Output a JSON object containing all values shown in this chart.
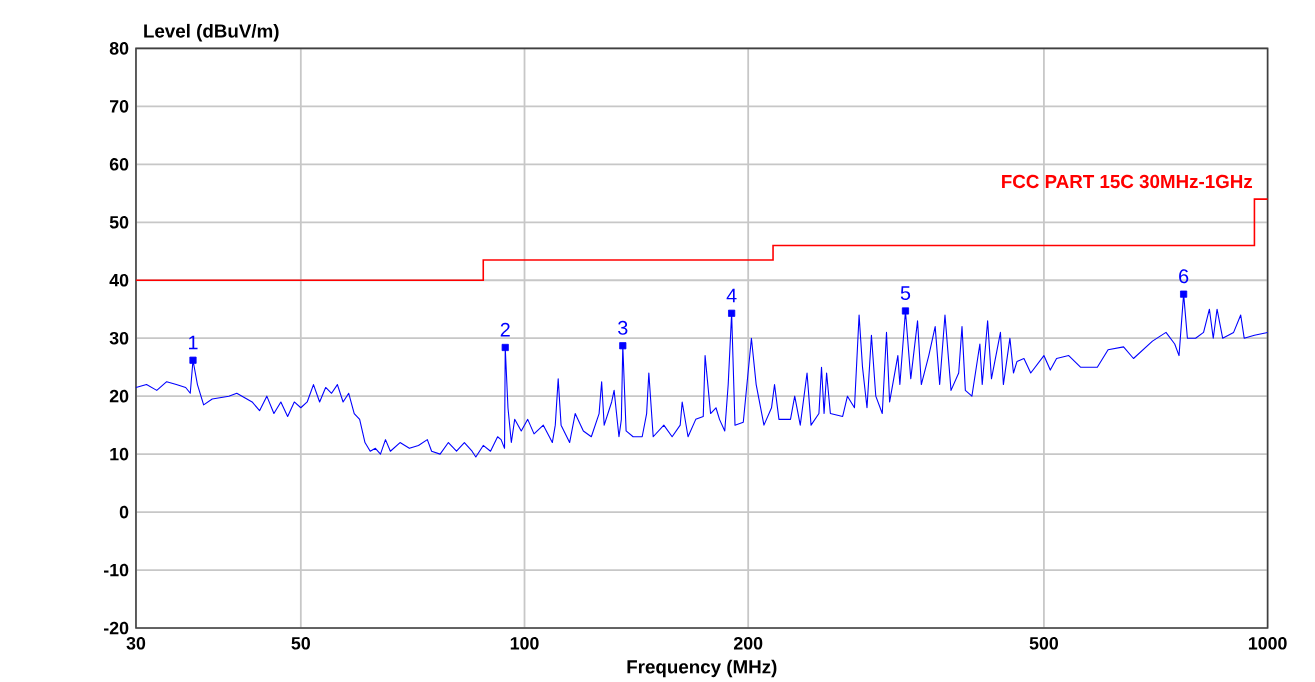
{
  "chart_data": {
    "type": "line",
    "xlabel": "Frequency (MHz)",
    "ylabel": "Level (dBuV/m)",
    "log": "x",
    "grid": true,
    "xlim": [
      30,
      1000
    ],
    "ylim": [
      -20,
      80
    ],
    "xticks": [
      30,
      50,
      100,
      200,
      500,
      1000
    ],
    "yticks": [
      -20,
      -10,
      0,
      10,
      20,
      30,
      40,
      50,
      60,
      70,
      80
    ],
    "series": [
      {
        "color": "#0000ff",
        "x": [
          30,
          31,
          32,
          33,
          34,
          35,
          35.5,
          35.8,
          36.3,
          37,
          38,
          40,
          41,
          43,
          44,
          45,
          46,
          47,
          48,
          49,
          50,
          51,
          52,
          53,
          54,
          55,
          56,
          57,
          58,
          59,
          60,
          61,
          62,
          63,
          64,
          65,
          66,
          68,
          70,
          72,
          74,
          75,
          77,
          79,
          81,
          83,
          85,
          86,
          88,
          90,
          92,
          93,
          94,
          94.2,
          95,
          96,
          97,
          99,
          101,
          103,
          106,
          108,
          109,
          110,
          111,
          112,
          115,
          117,
          120,
          123,
          126,
          127,
          128,
          131,
          132,
          134,
          135,
          135.6,
          137,
          140,
          144,
          146,
          147,
          149,
          154,
          158,
          162,
          163,
          166,
          170,
          174,
          175,
          178,
          181,
          183,
          186,
          188,
          190,
          192,
          197,
          202,
          205,
          210,
          215,
          217,
          220,
          228,
          231,
          235,
          240,
          243,
          249,
          251,
          253,
          255,
          258,
          268,
          272,
          278,
          282,
          285,
          289,
          293,
          297,
          303,
          307,
          310,
          318,
          320,
          325.6,
          331,
          338,
          342,
          350,
          357,
          362,
          368,
          375,
          384,
          388,
          392,
          400,
          410,
          413,
          420,
          425,
          437,
          441,
          450,
          455,
          460,
          470,
          480,
          500,
          510,
          520,
          540,
          560,
          590,
          610,
          640,
          660,
          700,
          730,
          750,
          760,
          771,
          780,
          800,
          820,
          835,
          845,
          855,
          870,
          900,
          920,
          930,
          960,
          1000
        ],
        "values": [
          21.5,
          22,
          21,
          22.5,
          22,
          21.5,
          20.5,
          26.2,
          22,
          18.5,
          19.5,
          20,
          20.5,
          19,
          17.5,
          20,
          17,
          19,
          16.5,
          19,
          18,
          19,
          22,
          19,
          21.5,
          20.5,
          22,
          19,
          20.5,
          17,
          16,
          12,
          10.5,
          11,
          10,
          12.5,
          10.5,
          12,
          11,
          11.5,
          12.5,
          10.5,
          10,
          12,
          10.5,
          12,
          10.5,
          9.5,
          11.5,
          10.5,
          13,
          12.5,
          11,
          28.4,
          18,
          12,
          16,
          14,
          16,
          13.5,
          15,
          13,
          12,
          15,
          23,
          15,
          12,
          17,
          14,
          13,
          17,
          22.5,
          15,
          19,
          21,
          13,
          16,
          28.7,
          14,
          13,
          13,
          17,
          24,
          13,
          15,
          13,
          15,
          19,
          13,
          16,
          16.5,
          27,
          17,
          18,
          16,
          14,
          22,
          34.3,
          15,
          15.5,
          30,
          22,
          15,
          18,
          22,
          16,
          16,
          20,
          15,
          24,
          15,
          17,
          25,
          17,
          24,
          17,
          16.5,
          20,
          18,
          34,
          25,
          18,
          30.5,
          20,
          17,
          31,
          19,
          27,
          22,
          34.7,
          23,
          33,
          22,
          27,
          32,
          22,
          34,
          21,
          24,
          32,
          21,
          20,
          29,
          22,
          33,
          23,
          31,
          22,
          30,
          24,
          26,
          26.5,
          24,
          27,
          24.5,
          26.5,
          27,
          25,
          25,
          28,
          28.5,
          26.5,
          29.5,
          31,
          29,
          27,
          37.6,
          30,
          30,
          31,
          35,
          30,
          35,
          30,
          31,
          34,
          30,
          30.5,
          31
        ]
      },
      {
        "type": "step",
        "name": "FCC PART 15C 30MHz-1GHz",
        "color": "#ff0000",
        "x": [
          30,
          88,
          216,
          960,
          1000
        ],
        "values": [
          40,
          43.5,
          46,
          54,
          54
        ]
      },
      {
        "type": "scatter",
        "color": "#0000ff",
        "marker": "square",
        "x": [
          35.8,
          94.2,
          135.6,
          190,
          325.6,
          771
        ],
        "values": [
          26.2,
          28.4,
          28.7,
          34.3,
          34.7,
          37.6
        ]
      }
    ],
    "annotations": [
      {
        "text": "1",
        "x": 35.8,
        "y": 26.2
      },
      {
        "text": "2",
        "x": 94.2,
        "y": 28.4
      },
      {
        "text": "3",
        "x": 135.6,
        "y": 28.7
      },
      {
        "text": "4",
        "x": 190,
        "y": 34.3
      },
      {
        "text": "5",
        "x": 325.6,
        "y": 34.7
      },
      {
        "text": "6",
        "x": 771,
        "y": 37.6
      }
    ]
  }
}
